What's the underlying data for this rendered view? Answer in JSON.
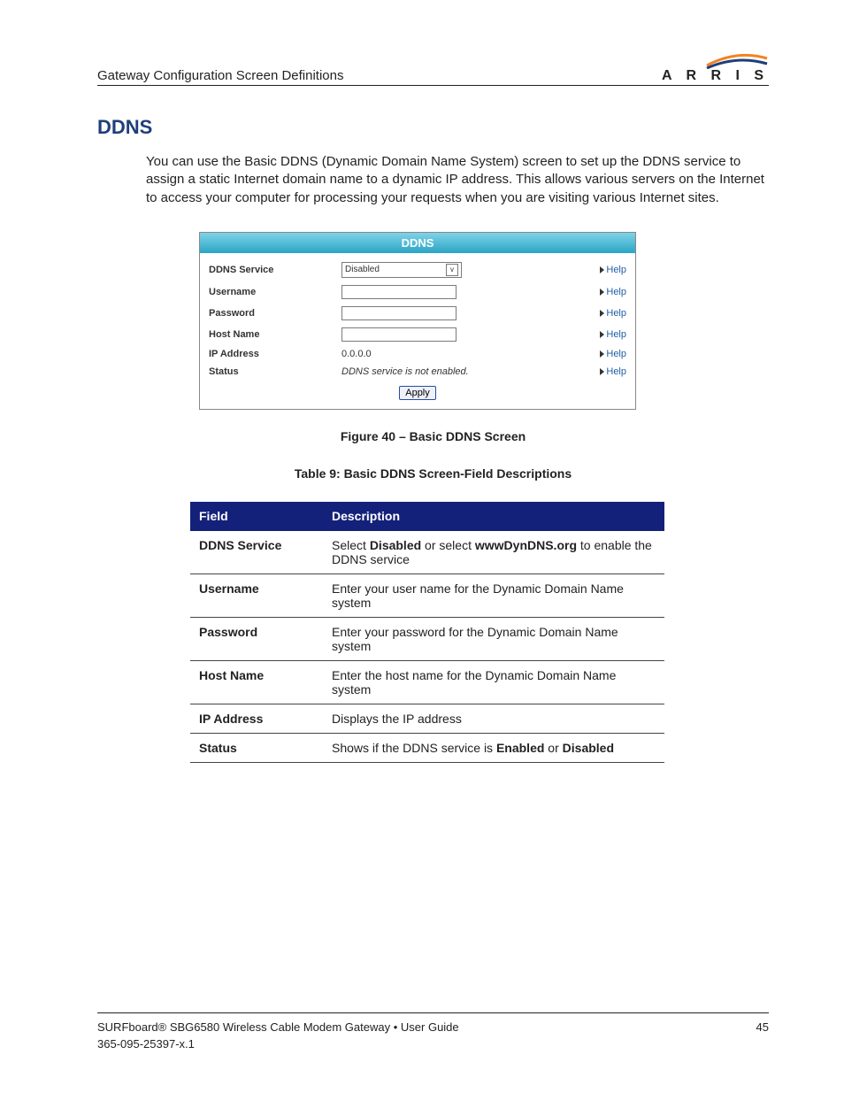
{
  "header": {
    "title": "Gateway Configuration Screen Definitions",
    "logo_text": "A R R I S",
    "logo_swoosh_top": "#f58220",
    "logo_swoosh_bottom": "#1f3f7a"
  },
  "section": {
    "title": "DDNS",
    "title_color": "#1f3f7a",
    "paragraph": "You can use the Basic DDNS (Dynamic Domain Name System) screen to set up the DDNS service to assign a static Internet domain name to a dynamic IP address. This allows various servers on the Internet to access your computer for processing your requests when you are visiting various Internet sites."
  },
  "panel": {
    "titlebar": {
      "text": "DDNS",
      "background": "linear-gradient(#7fd3e8, #2aa5c4)"
    },
    "rows": [
      {
        "label": "DDNS Service",
        "type": "select",
        "value": "Disabled"
      },
      {
        "label": "Username",
        "type": "input",
        "value": ""
      },
      {
        "label": "Password",
        "type": "input",
        "value": ""
      },
      {
        "label": "Host Name",
        "type": "input",
        "value": ""
      },
      {
        "label": "IP Address",
        "type": "static",
        "value": "0.0.0.0"
      },
      {
        "label": "Status",
        "type": "italic",
        "value": "DDNS service is not enabled."
      }
    ],
    "help_label": "Help",
    "help_link_color": "#1f5fa8",
    "apply_label": "Apply"
  },
  "captions": {
    "figure": "Figure 40 – Basic DDNS Screen",
    "table": "Table 9: Basic DDNS Screen-Field Descriptions"
  },
  "desc_table": {
    "header_bg": "#14217a",
    "columns": [
      "Field",
      "Description"
    ],
    "rows": [
      {
        "field": "DDNS Service",
        "desc_pre": "Select ",
        "b1": "Disabled",
        "mid": " or select ",
        "b2": "wwwDynDNS.org",
        "post": " to enable the DDNS service"
      },
      {
        "field": "Username",
        "desc": "Enter your user name for the Dynamic Domain Name system"
      },
      {
        "field": "Password",
        "desc": "Enter your password for the Dynamic Domain Name system"
      },
      {
        "field": "Host Name",
        "desc": "Enter the host name for the Dynamic Domain Name system"
      },
      {
        "field": "IP Address",
        "desc": "Displays the IP address"
      },
      {
        "field": "Status",
        "desc_pre": "Shows if the DDNS service is ",
        "b1": "Enabled",
        "mid": " or ",
        "b2": "Disabled",
        "post": ""
      }
    ]
  },
  "footer": {
    "line1_pre": "SURFboard® SBG6580 Wireless Cable Modem Gateway ",
    "bullet": "•",
    "line1_post": " User Guide",
    "line2": "365-095-25397-x.1",
    "page_no": "45"
  }
}
